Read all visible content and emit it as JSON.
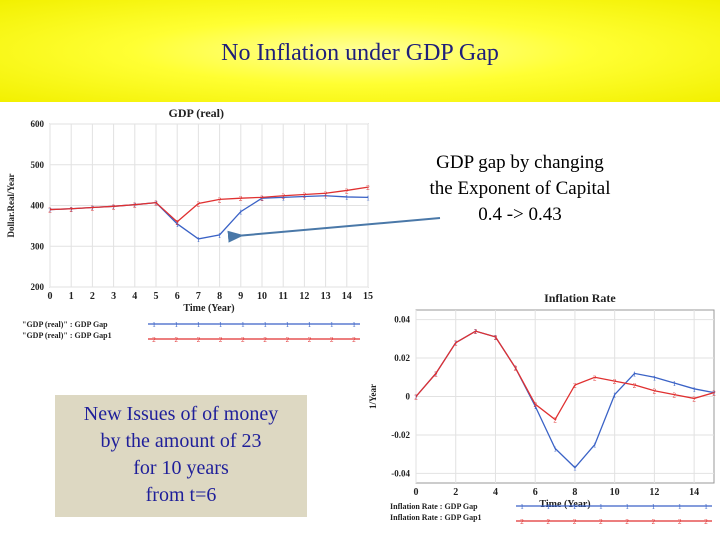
{
  "slide": {
    "title": "No Inflation under GDP Gap"
  },
  "annotation": {
    "lines": [
      "GDP gap by changing",
      "the Exponent of Capital",
      "0.4 -> 0.43"
    ]
  },
  "issue_box": {
    "lines": [
      "New Issues of of money",
      "by the amount of 23",
      "for 10 years",
      "from t=6"
    ]
  },
  "colors": {
    "title_bg": "#ffff33",
    "title_text": "#1f1f7a",
    "series_blue": "#3a62c6",
    "series_red": "#e03030",
    "box_bg": "#ddd8c2",
    "box_text": "#1f1f9a"
  },
  "chart_data": [
    {
      "type": "line",
      "title": "GDP (real)",
      "xlabel": "Time (Year)",
      "ylabel": "Dollar.Real/Year",
      "xlim": [
        0,
        15
      ],
      "ylim": [
        200,
        600
      ],
      "x_ticks": [
        0,
        1,
        2,
        3,
        4,
        5,
        6,
        7,
        8,
        9,
        10,
        11,
        12,
        13,
        14,
        15
      ],
      "y_ticks": [
        200,
        300,
        400,
        500,
        600
      ],
      "grid": true,
      "legend_position": "bottom-left",
      "series": [
        {
          "name": "\"GDP (real)\" : GDP Gap",
          "marker": "1",
          "x": [
            0,
            1,
            2,
            3,
            4,
            5,
            6,
            7,
            8,
            9,
            10,
            11,
            12,
            13,
            14,
            15
          ],
          "values": [
            390,
            392,
            395,
            398,
            402,
            407,
            355,
            318,
            328,
            385,
            418,
            420,
            422,
            424,
            421,
            420
          ]
        },
        {
          "name": "\"GDP (real)\" : GDP Gap1",
          "marker": "2",
          "x": [
            0,
            1,
            2,
            3,
            4,
            5,
            6,
            7,
            8,
            9,
            10,
            11,
            12,
            13,
            14,
            15
          ],
          "values": [
            390,
            392,
            395,
            398,
            402,
            407,
            360,
            405,
            415,
            418,
            420,
            424,
            427,
            430,
            437,
            445
          ]
        }
      ]
    },
    {
      "type": "line",
      "title": "Inflation Rate",
      "xlabel": "Time (Year)",
      "ylabel": "1/Year",
      "xlim": [
        0,
        15
      ],
      "ylim": [
        -0.045,
        0.045
      ],
      "x_ticks": [
        0,
        2,
        4,
        6,
        8,
        10,
        12,
        14
      ],
      "y_ticks": [
        0.04,
        0.02,
        0,
        -0.02,
        -0.04
      ],
      "y_tick_labels": [
        "0.04",
        "0.02",
        "0",
        "-0.02",
        "-0.04"
      ],
      "grid": true,
      "legend_position": "bottom-left",
      "series": [
        {
          "name": "Inflation Rate : GDP Gap",
          "marker": "1",
          "x": [
            0,
            1,
            2,
            3,
            4,
            5,
            6,
            7,
            8,
            9,
            10,
            11,
            12,
            13,
            14,
            15
          ],
          "values": [
            0,
            0.012,
            0.028,
            0.034,
            0.031,
            0.015,
            -0.005,
            -0.027,
            -0.037,
            -0.025,
            0.001,
            0.012,
            0.01,
            0.007,
            0.004,
            0.002
          ]
        },
        {
          "name": "Inflation Rate : GDP Gap1",
          "marker": "2",
          "x": [
            0,
            1,
            2,
            3,
            4,
            5,
            6,
            7,
            8,
            9,
            10,
            11,
            12,
            13,
            14,
            15
          ],
          "values": [
            0,
            0.012,
            0.028,
            0.034,
            0.031,
            0.015,
            -0.004,
            -0.012,
            0.006,
            0.01,
            0.008,
            0.006,
            0.003,
            0.001,
            -0.001,
            0.002
          ]
        }
      ]
    }
  ]
}
